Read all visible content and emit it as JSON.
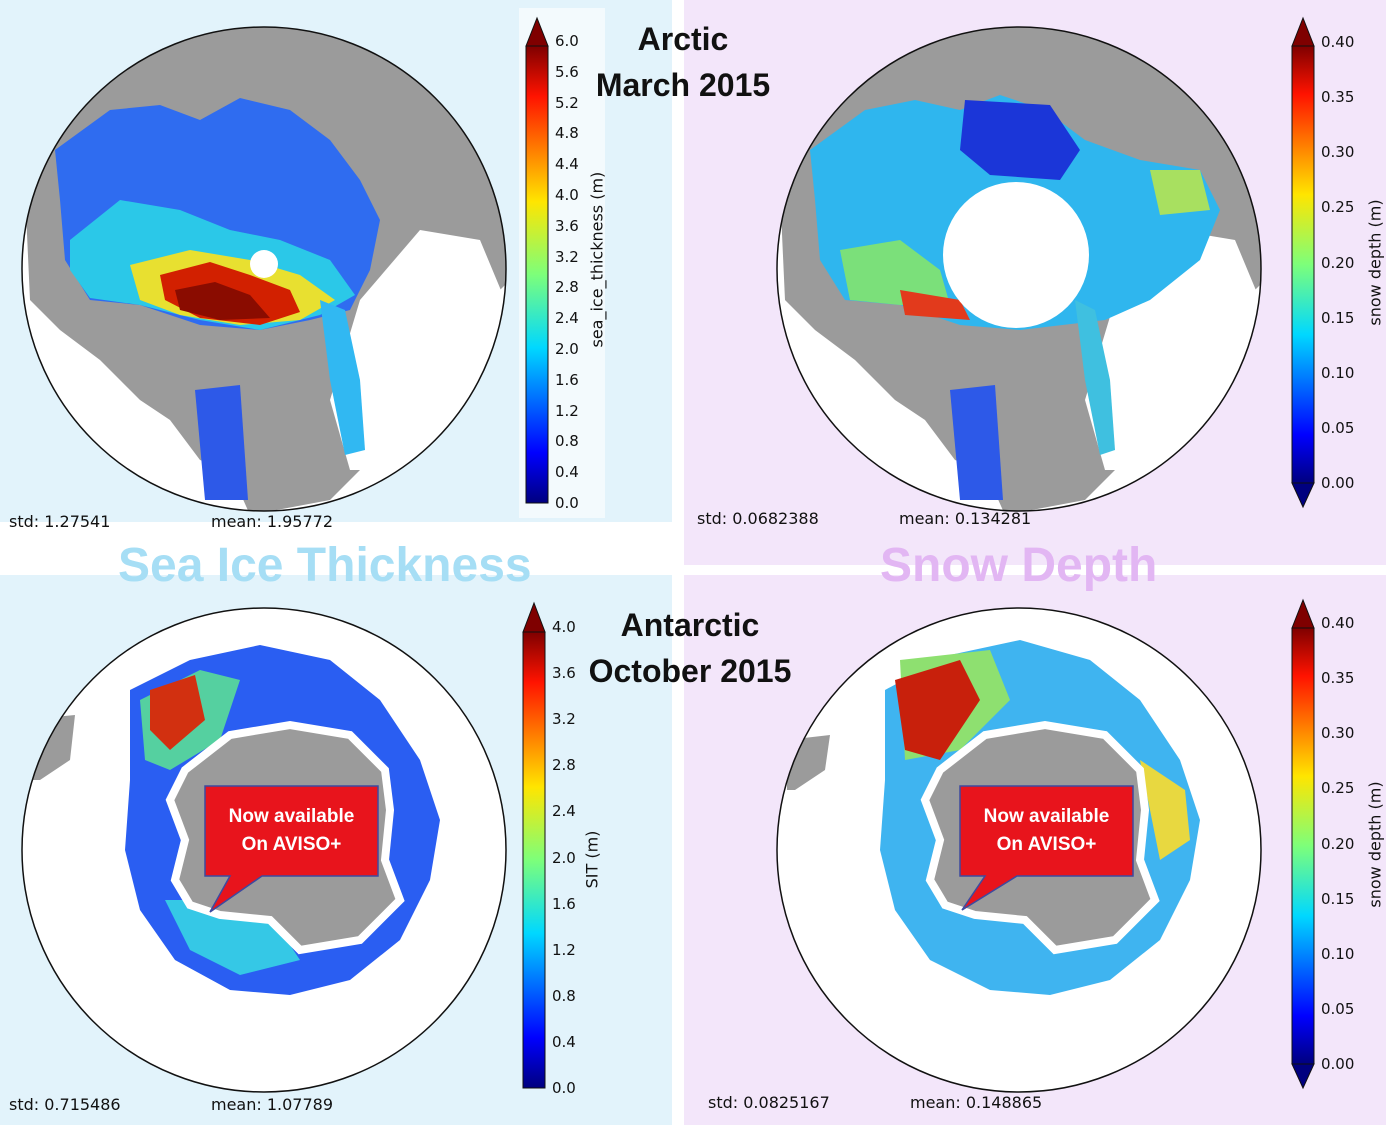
{
  "colors": {
    "thickness_bg": "#e2f3fb",
    "snow_bg": "#f3e6fa",
    "land": "#9b9b9b",
    "callout_fill": "#e8141c",
    "thickness_label": "#a6def5",
    "snow_label": "#e2b6f3"
  },
  "titles": {
    "arctic_line1": "Arctic",
    "arctic_line2": "March 2015",
    "antarctic_line1": "Antarctic",
    "antarctic_line2": "October 2015"
  },
  "section_labels": {
    "thickness": "Sea Ice Thickness",
    "snow": "Snow Depth"
  },
  "panels": {
    "arctic_sit": {
      "std": "std: 1.27541",
      "mean": "mean: 1.95772",
      "colorbar_label": "sea_ice_thickness (m)",
      "ticks": [
        "0.0",
        "0.4",
        "0.8",
        "1.2",
        "1.6",
        "2.0",
        "2.4",
        "2.8",
        "3.2",
        "3.6",
        "4.0",
        "4.4",
        "4.8",
        "5.2",
        "5.6",
        "6.0"
      ]
    },
    "arctic_snow": {
      "std": "std: 0.0682388",
      "mean": "mean: 0.134281",
      "colorbar_label": "snow depth (m)",
      "ticks": [
        "0.00",
        "0.05",
        "0.10",
        "0.15",
        "0.20",
        "0.25",
        "0.30",
        "0.35",
        "0.40"
      ]
    },
    "antarctic_sit": {
      "std": "std: 0.715486",
      "mean": "mean: 1.07789",
      "colorbar_label": "SIT (m)",
      "ticks": [
        "0.0",
        "0.4",
        "0.8",
        "1.2",
        "1.6",
        "2.0",
        "2.4",
        "2.8",
        "3.2",
        "3.6",
        "4.0"
      ]
    },
    "antarctic_snow": {
      "std": "std: 0.0825167",
      "mean": "mean: 0.148865",
      "colorbar_label": "snow depth (m)",
      "ticks": [
        "0.00",
        "0.05",
        "0.10",
        "0.15",
        "0.20",
        "0.25",
        "0.30",
        "0.35",
        "0.40"
      ]
    }
  },
  "callouts": {
    "line1": "Now available",
    "line2": "On AVISO+"
  }
}
